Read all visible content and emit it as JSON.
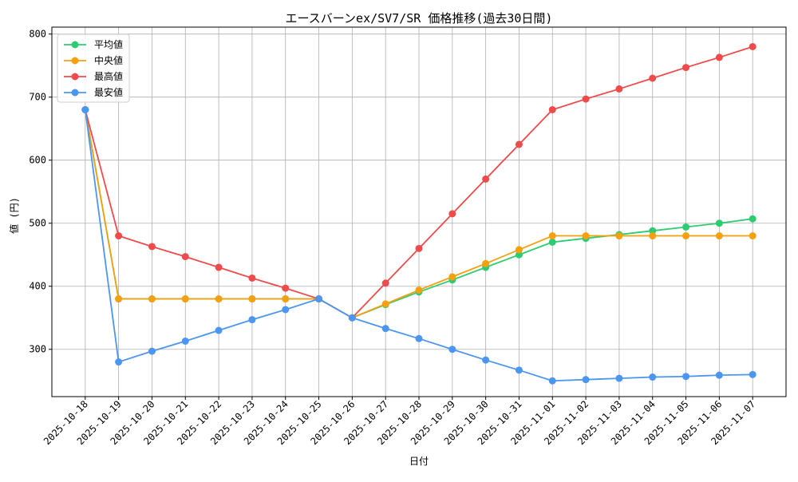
{
  "chart_data": {
    "type": "line",
    "title": "エースバーンex/SV7/SR 価格推移(過去30日間)",
    "x_label": "日付",
    "y_label": "値 (円)",
    "categories": [
      "2025-10-18",
      "2025-10-19",
      "2025-10-20",
      "2025-10-21",
      "2025-10-22",
      "2025-10-23",
      "2025-10-24",
      "2025-10-25",
      "2025-10-26",
      "2025-10-27",
      "2025-10-28",
      "2025-10-29",
      "2025-10-30",
      "2025-10-31",
      "2025-11-01",
      "2025-11-02",
      "2025-11-03",
      "2025-11-04",
      "2025-11-05",
      "2025-11-06",
      "2025-11-07"
    ],
    "series": [
      {
        "name": "平均値",
        "color": "#2ecc71",
        "values": [
          680,
          380,
          380,
          380,
          380,
          380,
          380,
          380,
          350,
          371,
          391,
          410,
          430,
          450,
          470,
          476,
          482,
          488,
          494,
          500,
          507
        ]
      },
      {
        "name": "中央値",
        "color": "#f5a00f",
        "values": [
          680,
          380,
          380,
          380,
          380,
          380,
          380,
          380,
          350,
          372,
          394,
          415,
          436,
          458,
          480,
          480,
          480,
          480,
          480,
          480,
          480
        ]
      },
      {
        "name": "最高値",
        "color": "#ef4b4b",
        "values": [
          680,
          480,
          463,
          447,
          430,
          413,
          397,
          380,
          350,
          405,
          460,
          515,
          570,
          625,
          680,
          697,
          713,
          730,
          747,
          763,
          780
        ]
      },
      {
        "name": "最安値",
        "color": "#4b96f0",
        "values": [
          680,
          280,
          297,
          313,
          330,
          347,
          363,
          380,
          350,
          333,
          317,
          300,
          283,
          267,
          250,
          252,
          254,
          256,
          257,
          259,
          260
        ]
      }
    ],
    "ylim": [
      225,
      811
    ],
    "yticks": [
      300,
      400,
      500,
      600,
      700,
      800
    ],
    "grid": true,
    "legend": "upper-left"
  }
}
